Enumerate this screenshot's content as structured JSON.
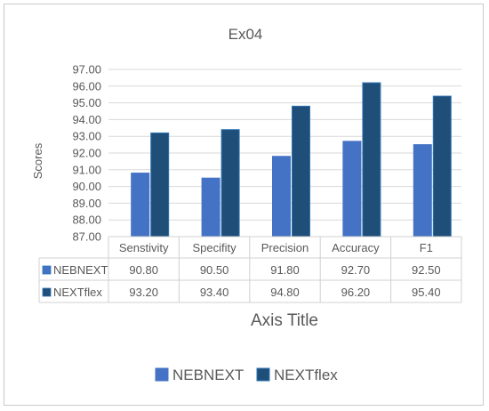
{
  "chart_data": {
    "type": "bar",
    "title": "Ex04",
    "ylabel": "Scores",
    "xlabel": "Axis Title",
    "ylim": [
      87,
      97
    ],
    "ytick_step": 1,
    "ytick_labels": [
      "87.00",
      "88.00",
      "89.00",
      "90.00",
      "91.00",
      "92.00",
      "93.00",
      "94.00",
      "95.00",
      "96.00",
      "97.00"
    ],
    "categories": [
      "Senstivity",
      "Specifity",
      "Precision",
      "Accuracy",
      "F1"
    ],
    "series": [
      {
        "name": "NEBNEXT",
        "values": [
          90.8,
          90.5,
          91.8,
          92.7,
          92.5
        ],
        "labels": [
          "90.80",
          "90.50",
          "91.80",
          "92.70",
          "92.50"
        ],
        "color": "#4472c4"
      },
      {
        "name": "NEXTflex",
        "values": [
          93.2,
          93.4,
          94.8,
          96.2,
          95.4
        ],
        "labels": [
          "93.20",
          "93.40",
          "94.80",
          "96.20",
          "95.40"
        ],
        "color": "#1f4e79"
      }
    ],
    "gridlines": true,
    "legend_position": "bottom",
    "data_table": true
  }
}
